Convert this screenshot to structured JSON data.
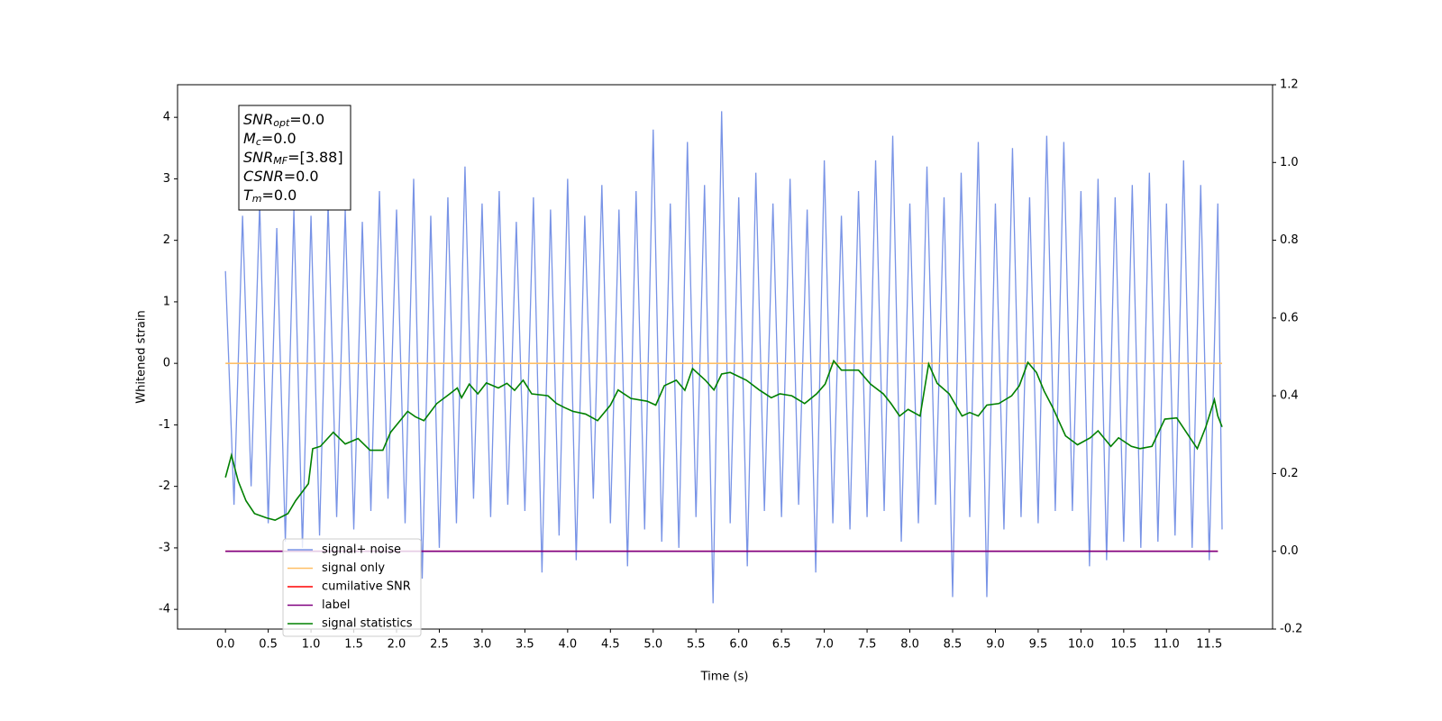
{
  "chart_data": {
    "type": "line",
    "xlabel": "Time (s)",
    "ylabel": "Whitened strain",
    "xlim": [
      -0.56,
      12.24
    ],
    "ylim": [
      -4.32,
      4.53
    ],
    "y2lim": [
      -0.2,
      1.2
    ],
    "xticks": [
      {
        "value": 0,
        "label": "0.0"
      },
      0.5,
      {
        "value": 1,
        "label": "1.0"
      },
      1.5,
      {
        "value": 2,
        "label": "2.0"
      },
      2.5,
      {
        "value": 3,
        "label": "3.0"
      },
      3.5,
      {
        "value": 4,
        "label": "4.0"
      },
      4.5,
      {
        "value": 5,
        "label": "5.0"
      },
      5.5,
      {
        "value": 6,
        "label": "6.0"
      },
      6.5,
      {
        "value": 7,
        "label": "7.0"
      },
      7.5,
      {
        "value": 8,
        "label": "8.0"
      },
      8.5,
      {
        "value": 9,
        "label": "9.0"
      },
      9.5,
      {
        "value": 10,
        "label": "10.0"
      },
      10.5,
      {
        "value": 11,
        "label": "11.0"
      },
      11.5
    ],
    "yticks": [
      -4,
      -3,
      -2,
      -1,
      0,
      1,
      2,
      3,
      4
    ],
    "y2ticks": [
      -0.2,
      {
        "value": 0,
        "label": "0.0"
      },
      0.2,
      0.4,
      0.6,
      0.8,
      {
        "value": 1,
        "label": "1.0"
      },
      1.2
    ],
    "legend_loc": "lower left",
    "annotations": [
      {
        "text": "SNR",
        "sub": "opt",
        "rest": "=0.0"
      },
      {
        "text": "M",
        "sub": "c",
        "rest": "=0.0"
      },
      {
        "text": "SNR",
        "sub": "MF",
        "rest": "=[3.88]"
      },
      {
        "text": "CSNR",
        "rest": "=0.0"
      },
      {
        "text": "T",
        "sub": "m",
        "rest": "=0.0"
      }
    ],
    "series": [
      {
        "name": "signal+ noise",
        "color": "#7893e6",
        "axis": "y",
        "x": [
          0,
          0.1,
          0.2,
          0.3,
          0.4,
          0.5,
          0.6,
          0.7,
          0.8,
          0.9,
          1,
          1.1,
          1.2,
          1.3,
          1.4,
          1.5,
          1.6,
          1.7,
          1.8,
          1.9,
          2,
          2.1,
          2.2,
          2.3,
          2.4,
          2.5,
          2.6,
          2.7,
          2.8,
          2.9,
          3,
          3.1,
          3.2,
          3.3,
          3.4,
          3.5,
          3.6,
          3.7,
          3.8,
          3.9,
          4,
          4.1,
          4.2,
          4.3,
          4.4,
          4.5,
          4.6,
          4.7,
          4.8,
          4.9,
          5,
          5.1,
          5.2,
          5.3,
          5.4,
          5.5,
          5.6,
          5.7,
          5.8,
          5.9,
          6,
          6.1,
          6.2,
          6.3,
          6.4,
          6.5,
          6.6,
          6.7,
          6.8,
          6.9,
          7,
          7.1,
          7.2,
          7.3,
          7.4,
          7.5,
          7.6,
          7.7,
          7.8,
          7.9,
          8,
          8.1,
          8.2,
          8.3,
          8.4,
          8.5,
          8.6,
          8.7,
          8.8,
          8.9,
          9,
          9.1,
          9.2,
          9.3,
          9.4,
          9.5,
          9.6,
          9.7,
          9.8,
          9.9,
          10,
          10.1,
          10.2,
          10.3,
          10.4,
          10.5,
          10.6,
          10.7,
          10.8,
          10.9,
          11,
          11.1,
          11.2,
          11.3,
          11.4,
          11.5,
          11.6,
          11.65
        ],
        "values": [
          1.5,
          -2.3,
          2.4,
          -2.0,
          2.6,
          -2.6,
          2.2,
          -2.9,
          2.5,
          -3.0,
          2.4,
          -2.8,
          2.6,
          -2.5,
          2.5,
          -2.7,
          2.3,
          -2.4,
          2.8,
          -2.2,
          2.5,
          -2.6,
          3.0,
          -3.5,
          2.4,
          -3.0,
          2.7,
          -2.6,
          3.2,
          -2.2,
          2.6,
          -2.5,
          2.8,
          -2.3,
          2.3,
          -2.4,
          2.7,
          -3.4,
          2.5,
          -2.8,
          3.0,
          -3.2,
          2.4,
          -2.2,
          2.9,
          -2.6,
          2.5,
          -3.3,
          2.8,
          -2.7,
          3.8,
          -2.9,
          2.6,
          -3.0,
          3.6,
          -2.5,
          2.9,
          -3.9,
          4.1,
          -2.6,
          2.7,
          -3.3,
          3.1,
          -2.4,
          2.6,
          -2.5,
          3.0,
          -2.3,
          2.5,
          -3.4,
          3.3,
          -2.6,
          2.4,
          -2.7,
          2.8,
          -2.5,
          3.3,
          -2.4,
          3.7,
          -2.9,
          2.6,
          -2.6,
          3.2,
          -2.3,
          2.7,
          -3.8,
          3.1,
          -2.5,
          3.6,
          -3.8,
          2.6,
          -2.7,
          3.5,
          -2.5,
          2.7,
          -2.6,
          3.7,
          -2.4,
          3.6,
          -2.4,
          2.8,
          -3.3,
          3.0,
          -3.2,
          2.7,
          -2.9,
          2.9,
          -3.0,
          3.1,
          -2.9,
          2.6,
          -2.8,
          3.3,
          -3.0,
          2.9,
          -3.2,
          2.6,
          -2.7
        ]
      },
      {
        "name": "signal only",
        "color": "#ffbf66",
        "axis": "y",
        "x": [
          0,
          11.65
        ],
        "values": [
          0,
          0
        ]
      },
      {
        "name": "cumilative SNR",
        "color": "#ff0000",
        "axis": "y2",
        "x": [
          0,
          11.6
        ],
        "values": [
          0,
          0
        ]
      },
      {
        "name": "label",
        "color": "#800080",
        "axis": "y2",
        "x": [
          0,
          11.6
        ],
        "values": [
          0,
          0
        ]
      },
      {
        "name": "signal statistics",
        "color": "#008000",
        "axis": "y2",
        "x": [
          0,
          0.07,
          0.15,
          0.24,
          0.34,
          0.48,
          0.58,
          0.73,
          0.82,
          0.97,
          1.02,
          1.11,
          1.26,
          1.4,
          1.55,
          1.69,
          1.84,
          1.93,
          2.13,
          2.22,
          2.32,
          2.47,
          2.61,
          2.71,
          2.76,
          2.85,
          2.95,
          3.05,
          3.19,
          3.29,
          3.38,
          3.48,
          3.58,
          3.77,
          3.87,
          3.96,
          4.06,
          4.21,
          4.35,
          4.5,
          4.59,
          4.74,
          4.93,
          5.03,
          5.13,
          5.27,
          5.37,
          5.46,
          5.61,
          5.71,
          5.8,
          5.9,
          6.09,
          6.24,
          6.38,
          6.48,
          6.62,
          6.77,
          6.91,
          7.01,
          7.11,
          7.2,
          7.4,
          7.54,
          7.69,
          7.78,
          7.88,
          7.98,
          8.12,
          8.22,
          8.32,
          8.46,
          8.61,
          8.7,
          8.8,
          8.9,
          9.04,
          9.19,
          9.28,
          9.38,
          9.48,
          9.57,
          9.67,
          9.82,
          9.96,
          10.11,
          10.2,
          10.35,
          10.44,
          10.59,
          10.69,
          10.83,
          10.98,
          11.12,
          11.22,
          11.36,
          11.46,
          11.56,
          11.6,
          11.65
        ],
        "values": [
          0.19,
          0.247,
          0.18,
          0.13,
          0.097,
          0.086,
          0.08,
          0.097,
          0.13,
          0.174,
          0.264,
          0.27,
          0.306,
          0.276,
          0.29,
          0.26,
          0.26,
          0.306,
          0.36,
          0.346,
          0.336,
          0.38,
          0.403,
          0.42,
          0.395,
          0.43,
          0.405,
          0.433,
          0.42,
          0.432,
          0.414,
          0.44,
          0.405,
          0.4,
          0.38,
          0.37,
          0.36,
          0.353,
          0.336,
          0.376,
          0.415,
          0.393,
          0.386,
          0.376,
          0.426,
          0.44,
          0.414,
          0.47,
          0.44,
          0.415,
          0.456,
          0.46,
          0.44,
          0.415,
          0.395,
          0.405,
          0.4,
          0.38,
          0.405,
          0.43,
          0.49,
          0.466,
          0.466,
          0.43,
          0.405,
          0.38,
          0.348,
          0.365,
          0.348,
          0.482,
          0.432,
          0.405,
          0.348,
          0.357,
          0.348,
          0.376,
          0.38,
          0.4,
          0.426,
          0.486,
          0.46,
          0.412,
          0.37,
          0.297,
          0.274,
          0.292,
          0.31,
          0.27,
          0.292,
          0.27,
          0.264,
          0.27,
          0.34,
          0.343,
          0.31,
          0.264,
          0.32,
          0.39,
          0.348,
          0.32
        ]
      }
    ]
  }
}
